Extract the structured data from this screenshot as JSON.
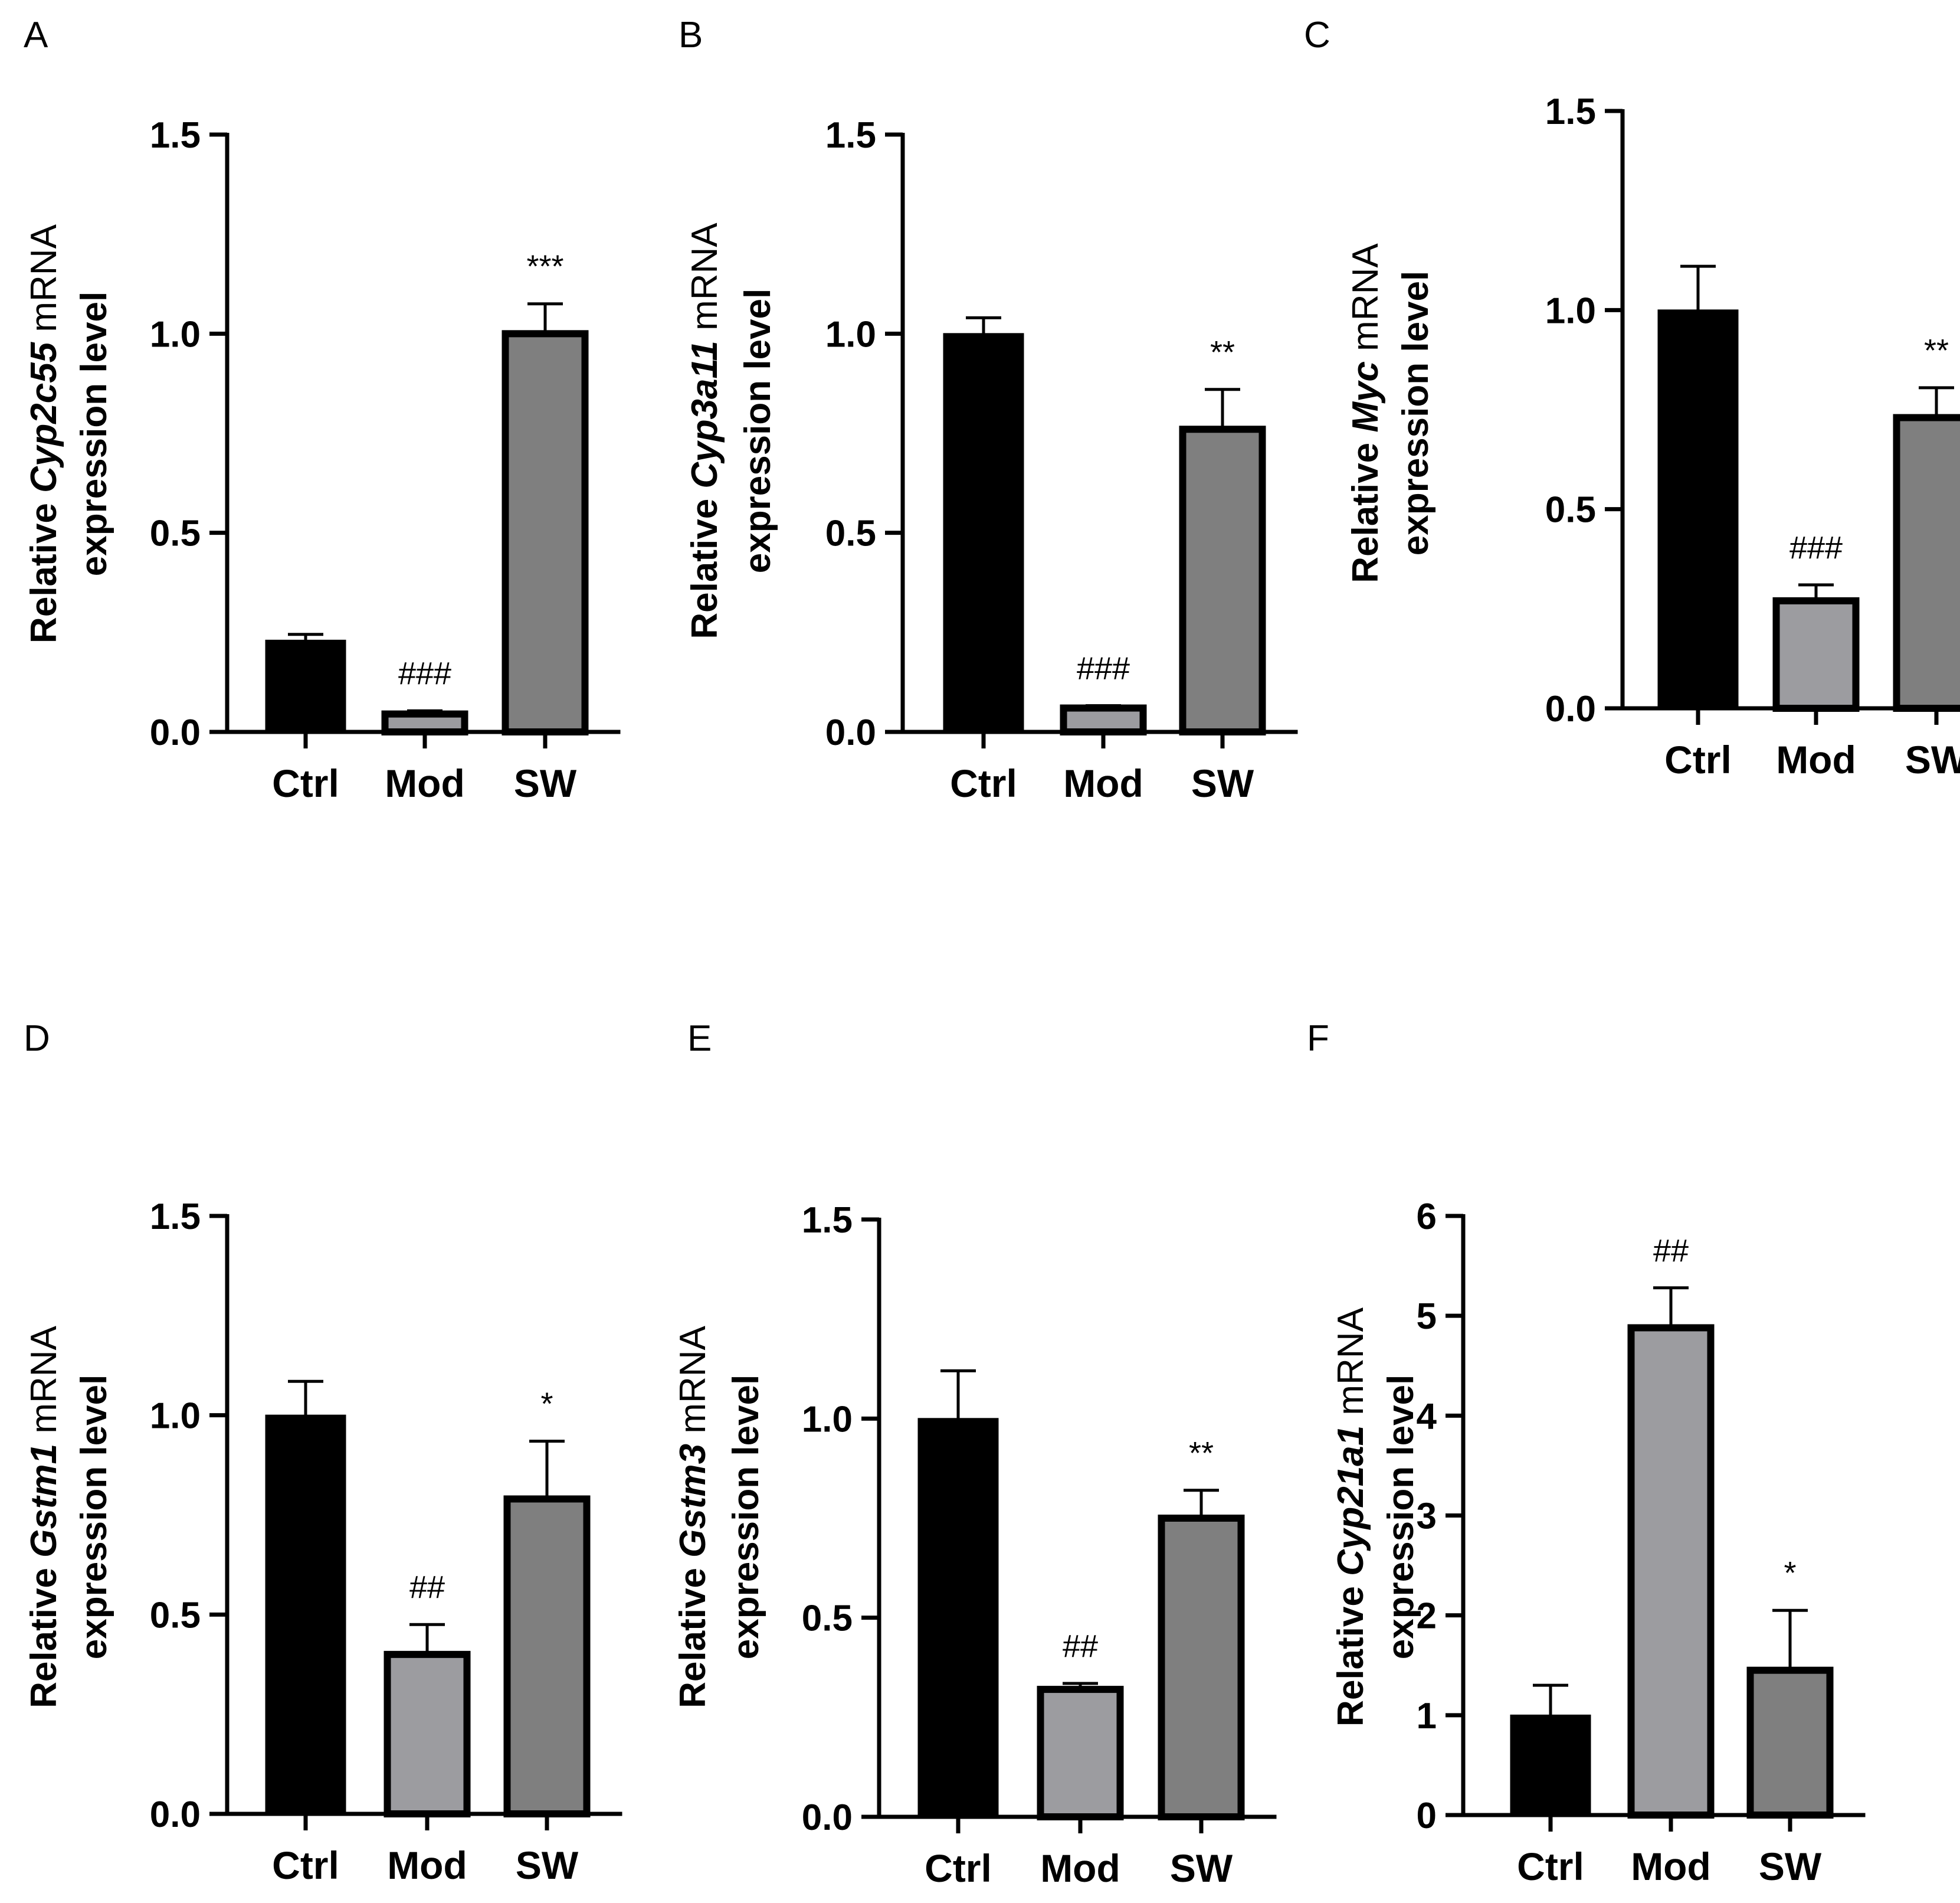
{
  "chart_data": [
    {
      "panel": "A",
      "type": "bar",
      "ylabel_pre": "Relative ",
      "gene": "Cyp2c55",
      "ylabel_post": " mRNA",
      "ylabel_line2": "expression level",
      "categories": [
        "Ctrl",
        "Mod",
        "SW"
      ],
      "values": [
        0.23,
        0.045,
        1.0
      ],
      "errors": [
        0.015,
        0.008,
        0.075
      ],
      "significance": [
        "",
        "###",
        "***"
      ],
      "ylim": [
        0,
        1.5
      ],
      "ticks": [
        "0.0",
        "0.5",
        "1.0",
        "1.5"
      ],
      "tick_values": [
        0,
        0.5,
        1.0,
        1.5
      ]
    },
    {
      "panel": "B",
      "type": "bar",
      "ylabel_pre": "Relative ",
      "gene": "Cyp3a11",
      "ylabel_post": " mRNA",
      "ylabel_line2": "expression level",
      "categories": [
        "Ctrl",
        "Mod",
        "SW"
      ],
      "values": [
        1.0,
        0.06,
        0.76
      ],
      "errors": [
        0.04,
        0.006,
        0.1
      ],
      "significance": [
        "",
        "###",
        "**"
      ],
      "ylim": [
        0,
        1.5
      ],
      "ticks": [
        "0.0",
        "0.5",
        "1.0",
        "1.5"
      ],
      "tick_values": [
        0,
        0.5,
        1.0,
        1.5
      ]
    },
    {
      "panel": "C",
      "type": "bar",
      "ylabel_pre": "Relative ",
      "gene": "Myc",
      "ylabel_post": " mRNA",
      "ylabel_line2": "expression level",
      "categories": [
        "Ctrl",
        "Mod",
        "SW"
      ],
      "values": [
        1.0,
        0.27,
        0.73
      ],
      "errors": [
        0.11,
        0.04,
        0.075
      ],
      "significance": [
        "",
        "###",
        "**"
      ],
      "ylim": [
        0,
        1.5
      ],
      "ticks": [
        "0.0",
        "0.5",
        "1.0",
        "1.5"
      ],
      "tick_values": [
        0,
        0.5,
        1.0,
        1.5
      ]
    },
    {
      "panel": "D",
      "type": "bar",
      "ylabel_pre": "Relative ",
      "gene": "Gstm1",
      "ylabel_post": " mRNA",
      "ylabel_line2": "expression level",
      "categories": [
        "Ctrl",
        "Mod",
        "SW"
      ],
      "values": [
        1.0,
        0.4,
        0.79
      ],
      "errors": [
        0.085,
        0.075,
        0.145
      ],
      "significance": [
        "",
        "##",
        "*"
      ],
      "ylim": [
        0,
        1.5
      ],
      "ticks": [
        "0.0",
        "0.5",
        "1.0",
        "1.5"
      ],
      "tick_values": [
        0,
        0.5,
        1.0,
        1.5
      ]
    },
    {
      "panel": "E",
      "type": "bar",
      "ylabel_pre": "Relative ",
      "gene": "Gstm3",
      "ylabel_post": " mRNA",
      "ylabel_line2": "expression level",
      "categories": [
        "Ctrl",
        "Mod",
        "SW"
      ],
      "values": [
        1.0,
        0.32,
        0.75
      ],
      "errors": [
        0.12,
        0.015,
        0.07
      ],
      "significance": [
        "",
        "##",
        "**"
      ],
      "ylim": [
        0,
        1.5
      ],
      "ticks": [
        "0.0",
        "0.5",
        "1.0",
        "1.5"
      ],
      "tick_values": [
        0,
        0.5,
        1.0,
        1.5
      ]
    },
    {
      "panel": "F",
      "type": "bar",
      "ylabel_pre": "Relative ",
      "gene": "Cyp21a1",
      "ylabel_post": " mRNA",
      "ylabel_line2": "expression level",
      "categories": [
        "Ctrl",
        "Mod",
        "SW"
      ],
      "values": [
        1.0,
        4.88,
        1.45
      ],
      "errors": [
        0.3,
        0.4,
        0.6
      ],
      "significance": [
        "",
        "##",
        "*"
      ],
      "ylim": [
        0,
        6
      ],
      "ticks": [
        "0",
        "1",
        "2",
        "3",
        "4",
        "5",
        "6"
      ],
      "tick_values": [
        0,
        1,
        2,
        3,
        4,
        5,
        6
      ]
    }
  ],
  "colors": {
    "ctrl": "#000000",
    "mod": "#9c9ca0",
    "sw": "#7f7f7f",
    "outline": "#000000"
  }
}
